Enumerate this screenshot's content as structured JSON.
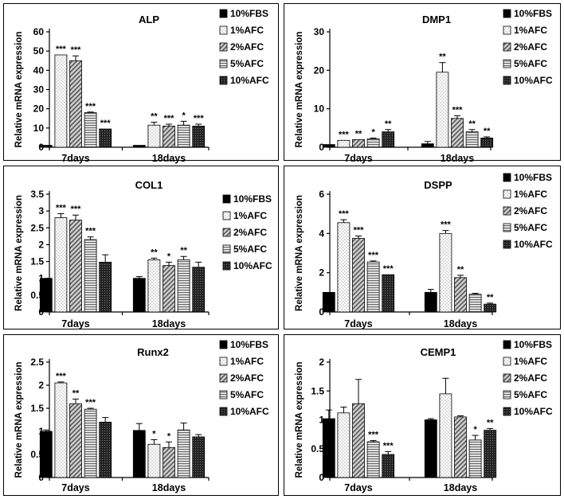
{
  "legend": [
    "10%FBS",
    "1%AFC",
    "2%AFC",
    "5%AFC",
    "10%AFC"
  ],
  "series_colors": [
    "#000000",
    "#ffffff",
    "#bdbdbd",
    "#d8d8d8",
    "#333333"
  ],
  "chart_data": [
    {
      "type": "bar",
      "title": "ALP",
      "ylabel": "Relative mRNA expression",
      "categories": [
        "7days",
        "18days"
      ],
      "ylim": [
        0,
        60
      ],
      "yticks": [
        "0",
        "10",
        "20",
        "30",
        "40",
        "50",
        "60"
      ],
      "yticks_values": [
        0,
        10,
        20,
        30,
        40,
        50,
        60
      ],
      "series": [
        {
          "name": "10%FBS",
          "values": [
            1,
            1
          ],
          "errors": [
            0,
            0
          ],
          "sig": [
            "",
            ""
          ]
        },
        {
          "name": "1%AFC",
          "values": [
            48,
            11.5
          ],
          "errors": [
            0,
            1.5
          ],
          "sig": [
            "***",
            "**"
          ]
        },
        {
          "name": "2%AFC",
          "values": [
            45,
            11
          ],
          "errors": [
            2.5,
            1
          ],
          "sig": [
            "***",
            "***"
          ]
        },
        {
          "name": "5%AFC",
          "values": [
            18,
            11.5
          ],
          "errors": [
            0.3,
            2
          ],
          "sig": [
            "***",
            "*"
          ]
        },
        {
          "name": "10%AFC",
          "values": [
            9.5,
            11
          ],
          "errors": [
            0,
            1
          ],
          "sig": [
            "***",
            "***"
          ]
        }
      ]
    },
    {
      "type": "bar",
      "title": "DMP1",
      "ylabel": "Relative mRNA expression",
      "categories": [
        "7days",
        "18days"
      ],
      "ylim": [
        0,
        30
      ],
      "yticks": [
        "0",
        "10",
        "20",
        "30"
      ],
      "yticks_values": [
        0,
        10,
        20,
        30
      ],
      "series": [
        {
          "name": "10%FBS",
          "values": [
            0.7,
            0.9
          ],
          "errors": [
            0,
            0.6
          ],
          "sig": [
            "",
            ""
          ]
        },
        {
          "name": "1%AFC",
          "values": [
            1.8,
            19.5
          ],
          "errors": [
            0,
            2.5
          ],
          "sig": [
            "***",
            "**"
          ]
        },
        {
          "name": "2%AFC",
          "values": [
            2.0,
            7.5
          ],
          "errors": [
            0,
            0.7
          ],
          "sig": [
            "**",
            "***"
          ]
        },
        {
          "name": "5%AFC",
          "values": [
            2.2,
            4.0
          ],
          "errors": [
            0.2,
            0.6
          ],
          "sig": [
            "*",
            "**"
          ]
        },
        {
          "name": "10%AFC",
          "values": [
            4.0,
            2.4
          ],
          "errors": [
            0.6,
            0.3
          ],
          "sig": [
            "**",
            "**"
          ]
        }
      ]
    },
    {
      "type": "bar",
      "title": "COL1",
      "ylabel": "Relative mRNA expression",
      "categories": [
        "7days",
        "18days"
      ],
      "ylim": [
        0,
        3.5
      ],
      "yticks": [
        "0",
        "0.5",
        "1",
        "1.5",
        "2",
        "2.5",
        "3",
        "3.5"
      ],
      "yticks_values": [
        0,
        0.5,
        1,
        1.5,
        2,
        2.5,
        3,
        3.5
      ],
      "series": [
        {
          "name": "10%FBS",
          "values": [
            1.0,
            1.0
          ],
          "errors": [
            0,
            0.05
          ],
          "sig": [
            "",
            ""
          ]
        },
        {
          "name": "1%AFC",
          "values": [
            2.8,
            1.55
          ],
          "errors": [
            0.12,
            0.05
          ],
          "sig": [
            "***",
            "**"
          ]
        },
        {
          "name": "2%AFC",
          "values": [
            2.73,
            1.38
          ],
          "errors": [
            0.15,
            0.1
          ],
          "sig": [
            "***",
            "*"
          ]
        },
        {
          "name": "5%AFC",
          "values": [
            2.15,
            1.55
          ],
          "errors": [
            0.08,
            0.1
          ],
          "sig": [
            "***",
            "**"
          ]
        },
        {
          "name": "10%AFC",
          "values": [
            1.48,
            1.33
          ],
          "errors": [
            0.22,
            0.15
          ],
          "sig": [
            "",
            ""
          ]
        }
      ]
    },
    {
      "type": "bar",
      "title": "DSPP",
      "ylabel": "Relative mRNA expression",
      "categories": [
        "7days",
        "18days"
      ],
      "ylim": [
        0,
        6
      ],
      "yticks": [
        "0",
        "2",
        "4",
        "6"
      ],
      "yticks_values": [
        0,
        2,
        4,
        6
      ],
      "series": [
        {
          "name": "10%FBS",
          "values": [
            1.0,
            1.0
          ],
          "errors": [
            0,
            0.15
          ],
          "sig": [
            "",
            ""
          ]
        },
        {
          "name": "1%AFC",
          "values": [
            4.55,
            4.0
          ],
          "errors": [
            0.15,
            0.15
          ],
          "sig": [
            "***",
            "***"
          ]
        },
        {
          "name": "2%AFC",
          "values": [
            3.75,
            1.75
          ],
          "errors": [
            0.12,
            0.12
          ],
          "sig": [
            "***",
            "**"
          ]
        },
        {
          "name": "5%AFC",
          "values": [
            2.55,
            0.9
          ],
          "errors": [
            0.05,
            0.05
          ],
          "sig": [
            "***",
            ""
          ]
        },
        {
          "name": "10%AFC",
          "values": [
            1.9,
            0.4
          ],
          "errors": [
            0,
            0.05
          ],
          "sig": [
            "***",
            "**"
          ]
        }
      ]
    },
    {
      "type": "bar",
      "title": "Runx2",
      "ylabel": "Relative mRNA expression",
      "categories": [
        "7days",
        "18days"
      ],
      "ylim": [
        0,
        2.5
      ],
      "yticks": [
        "0",
        "0.5",
        "1",
        "1.5",
        "2",
        "2.5"
      ],
      "yticks_values": [
        0,
        0.5,
        1,
        1.5,
        2,
        2.5
      ],
      "series": [
        {
          "name": "10%FBS",
          "values": [
            1.0,
            1.02
          ],
          "errors": [
            0.03,
            0.15
          ],
          "sig": [
            "",
            ""
          ]
        },
        {
          "name": "1%AFC",
          "values": [
            2.05,
            0.72
          ],
          "errors": [
            0.02,
            0.1
          ],
          "sig": [
            "***",
            "*"
          ]
        },
        {
          "name": "2%AFC",
          "values": [
            1.6,
            0.65
          ],
          "errors": [
            0.1,
            0.12
          ],
          "sig": [
            "**",
            "*"
          ]
        },
        {
          "name": "5%AFC",
          "values": [
            1.48,
            1.03
          ],
          "errors": [
            0.02,
            0.15
          ],
          "sig": [
            "***",
            ""
          ]
        },
        {
          "name": "10%AFC",
          "values": [
            1.2,
            0.88
          ],
          "errors": [
            0.1,
            0.05
          ],
          "sig": [
            "",
            ""
          ]
        }
      ]
    },
    {
      "type": "bar",
      "title": "CEMP1",
      "ylabel": "Relative mRNA expression",
      "categories": [
        "7days",
        "18days"
      ],
      "ylim": [
        0,
        2
      ],
      "yticks": [
        "0",
        "0.5",
        "1",
        "1.5",
        "2"
      ],
      "yticks_values": [
        0,
        0.5,
        1,
        1.5,
        2
      ],
      "series": [
        {
          "name": "10%FBS",
          "values": [
            1.02,
            1.0
          ],
          "errors": [
            0.15,
            0.02
          ],
          "sig": [
            "",
            ""
          ]
        },
        {
          "name": "1%AFC",
          "values": [
            1.12,
            1.45
          ],
          "errors": [
            0.1,
            0.27
          ],
          "sig": [
            "",
            ""
          ]
        },
        {
          "name": "2%AFC",
          "values": [
            1.28,
            1.05
          ],
          "errors": [
            0.42,
            0.02
          ],
          "sig": [
            "",
            ""
          ]
        },
        {
          "name": "5%AFC",
          "values": [
            0.62,
            0.65
          ],
          "errors": [
            0.02,
            0.08
          ],
          "sig": [
            "***",
            "*"
          ]
        },
        {
          "name": "10%AFC",
          "values": [
            0.4,
            0.82
          ],
          "errors": [
            0.05,
            0.03
          ],
          "sig": [
            "***",
            "**"
          ]
        }
      ]
    }
  ]
}
